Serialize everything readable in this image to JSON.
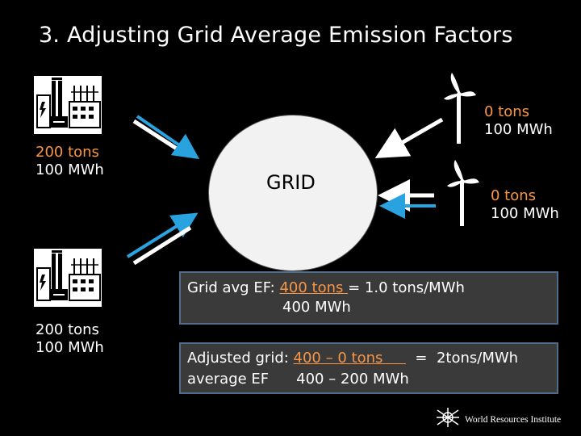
{
  "slide": {
    "title": "3. Adjusting Grid Average Emission Factors"
  },
  "plants": [
    {
      "tons": "200 tons",
      "mwh": "100 MWh"
    },
    {
      "tons": "200 tons",
      "mwh": "100 MWh"
    }
  ],
  "turbines": [
    {
      "tons": "0 tons",
      "mwh": "100 MWh"
    },
    {
      "tons": "0 tons",
      "mwh": "100 MWh"
    }
  ],
  "grid": {
    "label": "GRID"
  },
  "box1": {
    "prefix": "Grid avg EF: ",
    "numerator": "400 tons ",
    "result": " = 1.0 tons/MWh",
    "denominator": "400 MWh"
  },
  "box2": {
    "line1_prefix": "Adjusted grid: ",
    "numerator": "400 – 0 tons     ",
    "result": "  =  2tons/MWh",
    "line2_prefix": "average EF",
    "denominator": "400 – 200 MWh"
  },
  "footer": {
    "logo_text": "World Resources Institute"
  },
  "colors": {
    "accent_orange": "#f79646",
    "arrow_blue": "#29a3e0",
    "box_border": "#4f6d8a"
  }
}
